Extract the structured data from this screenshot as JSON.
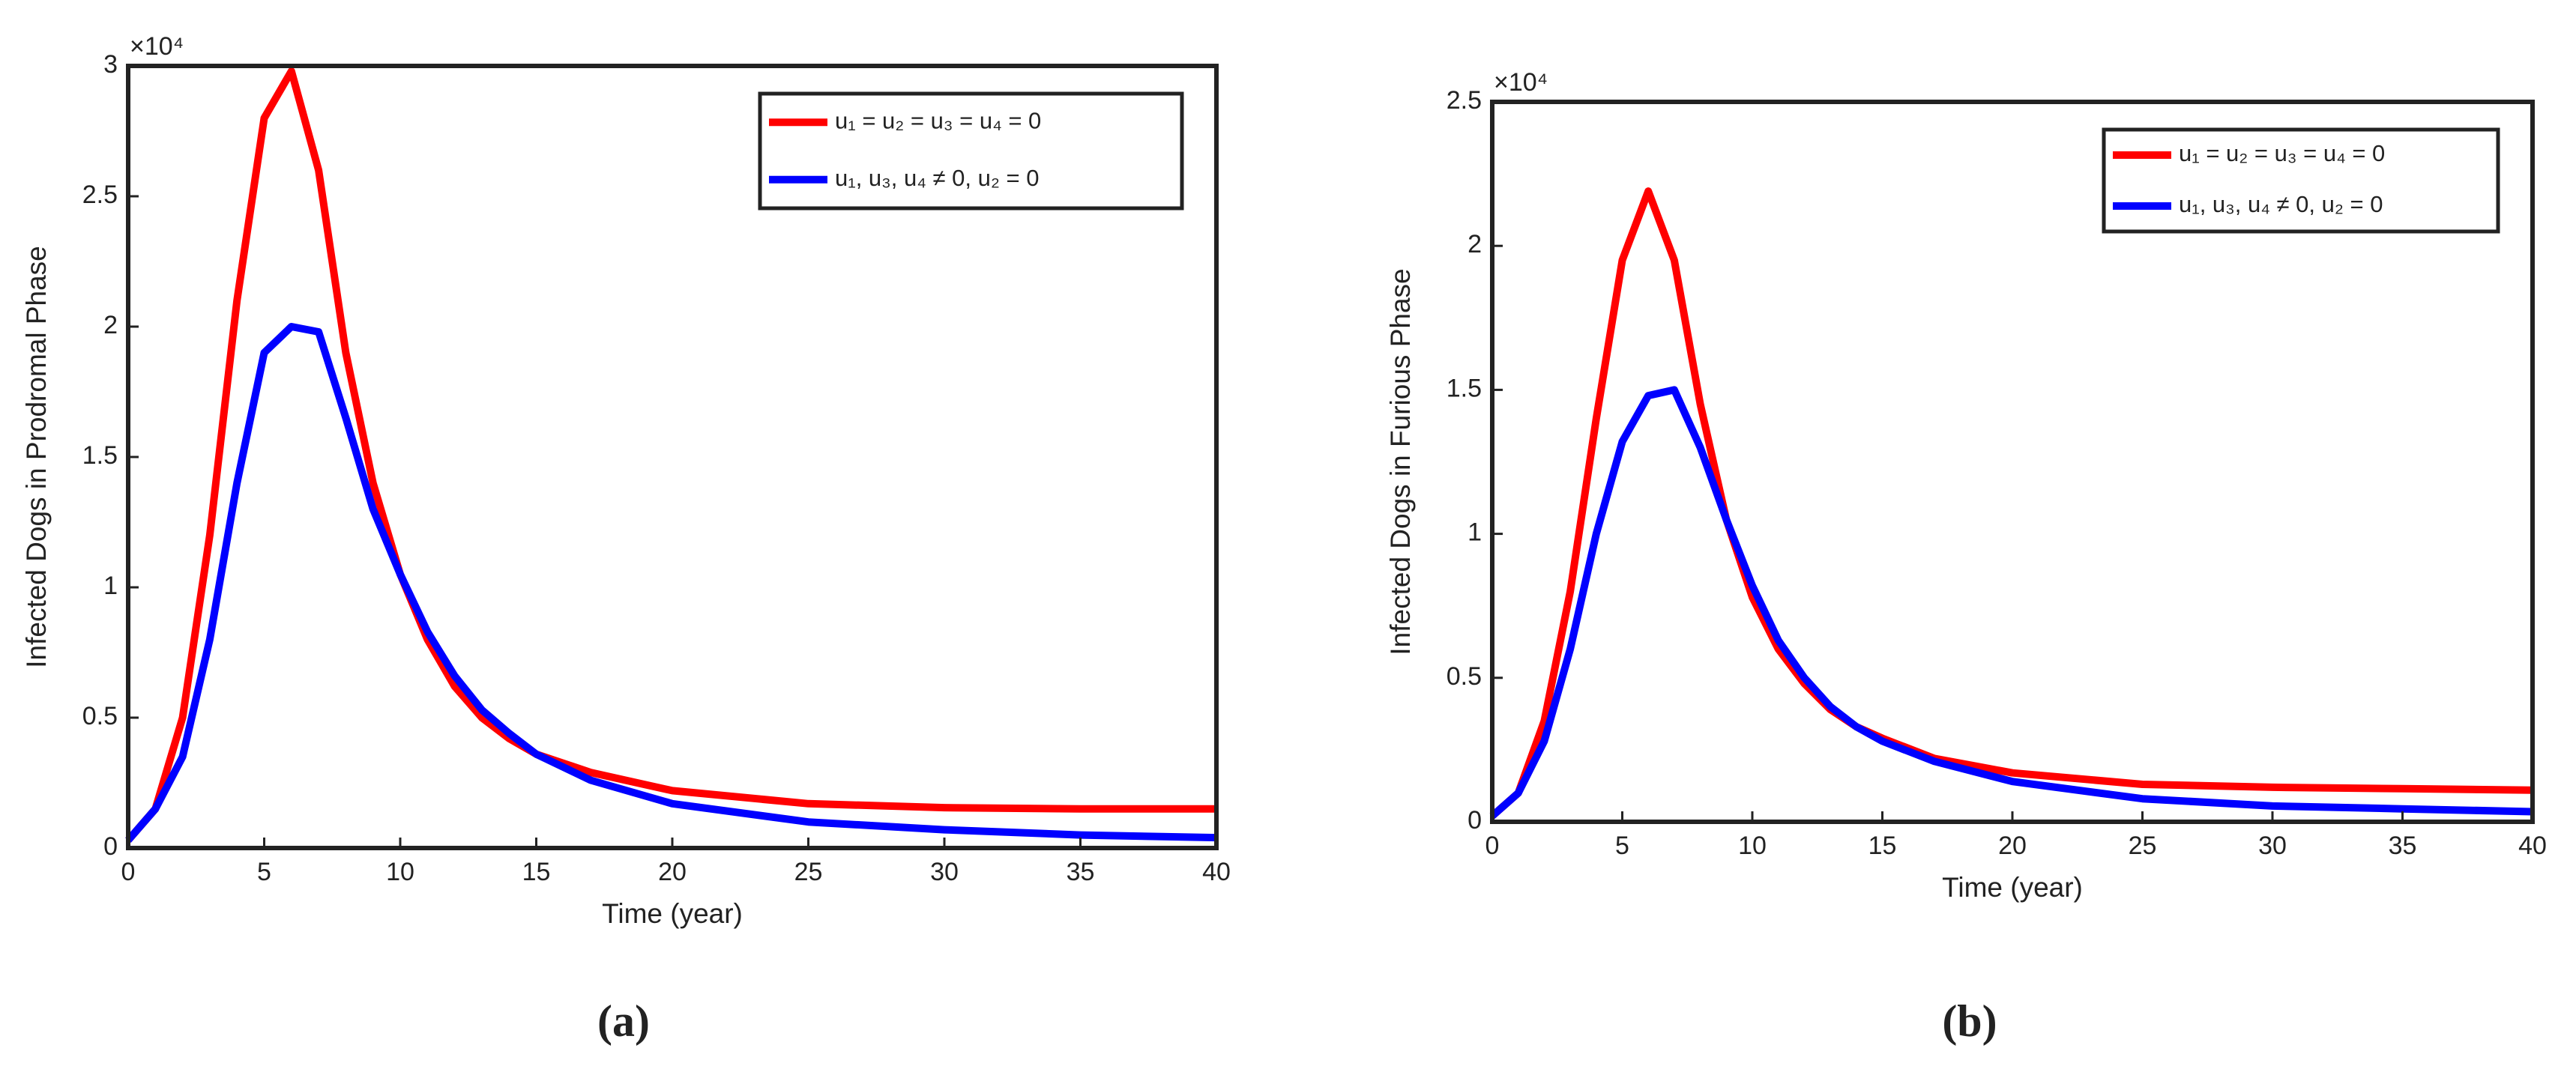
{
  "chart_data": [
    {
      "type": "line",
      "xlabel": "Time (year)",
      "ylabel": "Infected Dogs in Prodromal Phase",
      "y_multiplier": "×10⁴",
      "caption": "(a)",
      "x": [
        0,
        1,
        2,
        3,
        4,
        5,
        6,
        7,
        8,
        9,
        10,
        11,
        12,
        13,
        14,
        15,
        17,
        20,
        25,
        30,
        35,
        40
      ],
      "series": [
        {
          "name": "u₁ = u₂ = u₃ = u₄ = 0",
          "color": "#ff0000",
          "values": [
            0.03,
            0.15,
            0.5,
            1.2,
            2.1,
            2.8,
            2.98,
            2.6,
            1.9,
            1.4,
            1.05,
            0.8,
            0.62,
            0.5,
            0.42,
            0.36,
            0.29,
            0.22,
            0.17,
            0.155,
            0.15,
            0.15
          ]
        },
        {
          "name": "u₁, u₃, u₄ ≠ 0,  u₂ = 0",
          "color": "#0000ff",
          "values": [
            0.03,
            0.15,
            0.35,
            0.8,
            1.4,
            1.9,
            2.0,
            1.98,
            1.65,
            1.3,
            1.05,
            0.83,
            0.66,
            0.53,
            0.44,
            0.36,
            0.26,
            0.17,
            0.1,
            0.07,
            0.05,
            0.04
          ]
        }
      ],
      "xlim": [
        0,
        40
      ],
      "xticks": [
        0,
        5,
        10,
        15,
        20,
        25,
        30,
        35,
        40
      ],
      "ylim": [
        0,
        3
      ],
      "yticks": [
        0,
        0.5,
        1,
        1.5,
        2,
        2.5,
        3
      ],
      "legend": "upper right"
    },
    {
      "type": "line",
      "xlabel": "Time (year)",
      "ylabel": "Infected Dogs in Furious Phase",
      "y_multiplier": "×10⁴",
      "caption": "(b)",
      "x": [
        0,
        1,
        2,
        3,
        4,
        5,
        6,
        7,
        8,
        9,
        10,
        11,
        12,
        13,
        14,
        15,
        17,
        20,
        25,
        30,
        35,
        40
      ],
      "series": [
        {
          "name": "u₁ = u₂ = u₃ = u₄ = 0",
          "color": "#ff0000",
          "values": [
            0.02,
            0.1,
            0.35,
            0.8,
            1.4,
            1.95,
            2.19,
            1.95,
            1.45,
            1.05,
            0.78,
            0.6,
            0.48,
            0.39,
            0.33,
            0.29,
            0.22,
            0.17,
            0.13,
            0.12,
            0.115,
            0.11
          ]
        },
        {
          "name": "u₁, u₃, u₄ ≠ 0,  u₂ = 0",
          "color": "#0000ff",
          "values": [
            0.02,
            0.1,
            0.28,
            0.6,
            1.0,
            1.32,
            1.48,
            1.5,
            1.3,
            1.05,
            0.82,
            0.63,
            0.5,
            0.4,
            0.33,
            0.28,
            0.21,
            0.14,
            0.08,
            0.055,
            0.045,
            0.035
          ]
        }
      ],
      "xlim": [
        0,
        40
      ],
      "xticks": [
        0,
        5,
        10,
        15,
        20,
        25,
        30,
        35,
        40
      ],
      "ylim": [
        0,
        2.5
      ],
      "yticks": [
        0,
        0.5,
        1,
        1.5,
        2,
        2.5
      ],
      "legend": "upper right"
    }
  ]
}
